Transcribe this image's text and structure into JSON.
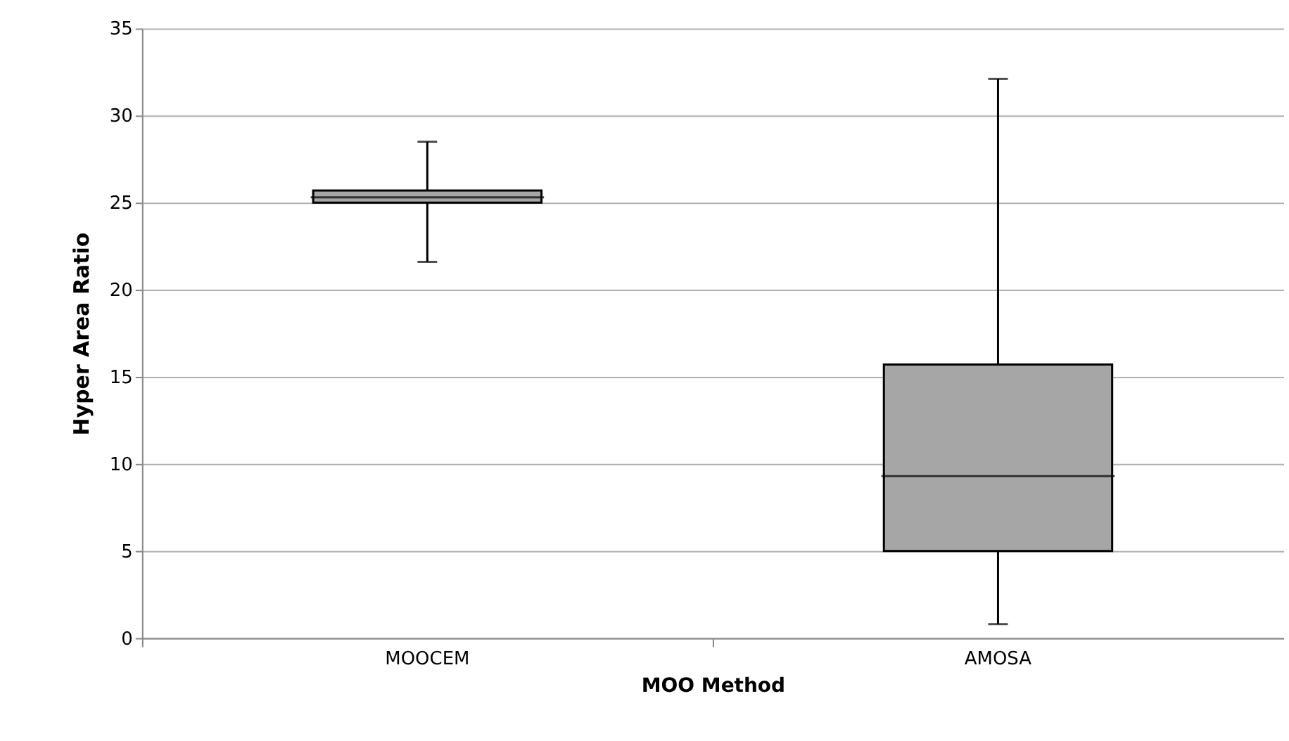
{
  "chart_data": {
    "type": "box",
    "xlabel": "MOO Method",
    "ylabel": "Hyper Area Ratio",
    "categories": [
      "MOOCEM",
      "AMOSA"
    ],
    "boxes": [
      {
        "low": 21.6,
        "q1": 25.0,
        "median": 25.3,
        "q3": 25.7,
        "high": 28.5
      },
      {
        "low": 0.8,
        "q1": 5.0,
        "median": 9.3,
        "q3": 15.7,
        "high": 32.1
      }
    ],
    "color": "#a6a6a6",
    "ylim": [
      0,
      35
    ],
    "yticks": [
      0,
      5,
      10,
      15,
      20,
      25,
      30,
      35
    ],
    "grid": "y"
  }
}
